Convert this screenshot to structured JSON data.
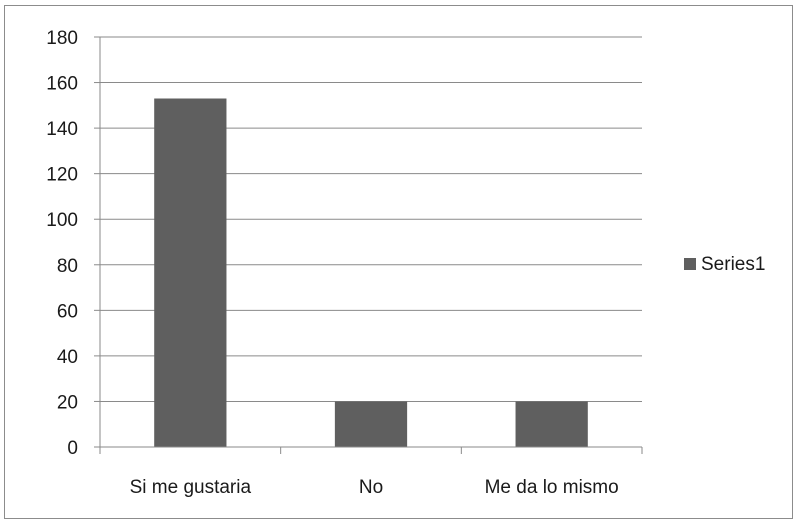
{
  "chart_data": {
    "type": "bar",
    "title": "",
    "xlabel": "",
    "ylabel": "",
    "categories": [
      "Si me gustaria",
      "No",
      "Me da lo mismo"
    ],
    "series": [
      {
        "name": "Series1",
        "values": [
          153,
          20,
          20
        ],
        "color": "#5f5f5f"
      }
    ],
    "ylim": [
      0,
      180
    ],
    "yticks": [
      "0",
      "20",
      "40",
      "60",
      "80",
      "100",
      "120",
      "140",
      "160",
      "180"
    ],
    "grid": true,
    "legend": "right"
  }
}
